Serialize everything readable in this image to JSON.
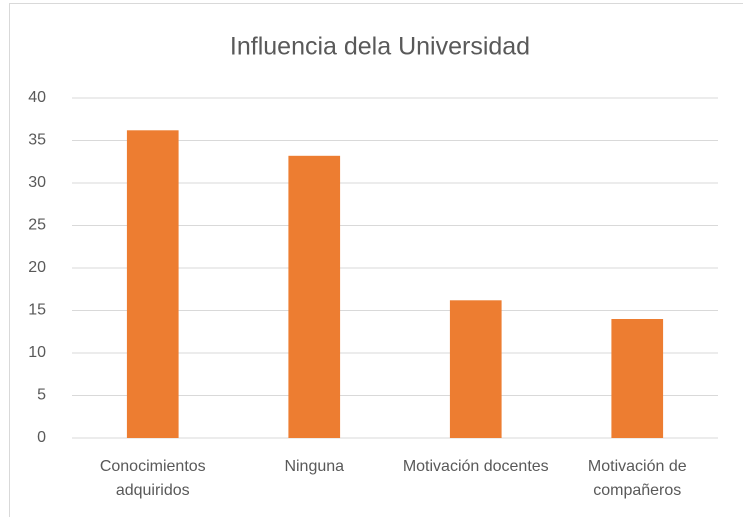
{
  "chart_data": {
    "type": "bar",
    "title": "Influencia dela Universidad",
    "categories": [
      "Conocimientos adquiridos",
      "Ninguna",
      "Motivación docentes",
      "Motivación de compañeros"
    ],
    "values": [
      36.2,
      33.2,
      16.2,
      14
    ],
    "color": "#ed7d31",
    "ylim": [
      0,
      40
    ],
    "yticks": [
      0,
      5,
      10,
      15,
      20,
      25,
      30,
      35,
      40
    ],
    "grid": true
  }
}
